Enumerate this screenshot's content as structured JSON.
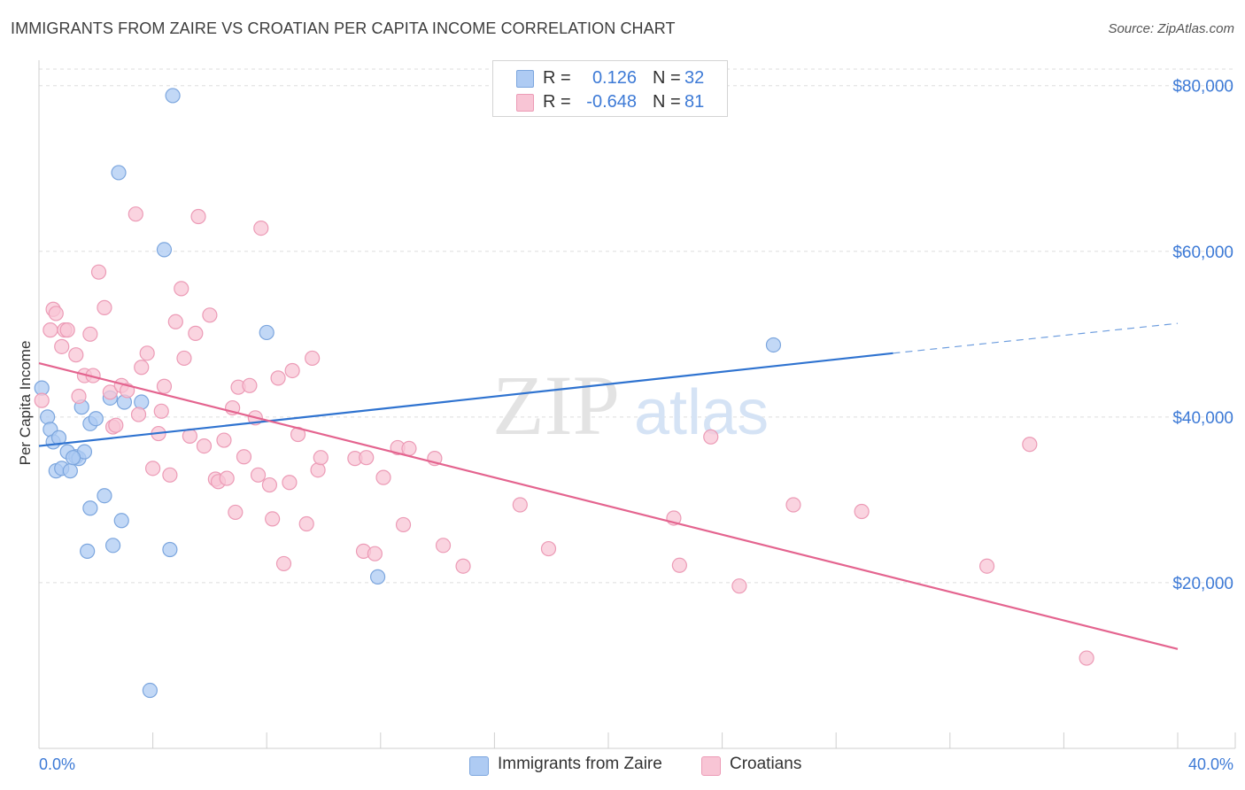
{
  "title": "IMMIGRANTS FROM ZAIRE VS CROATIAN PER CAPITA INCOME CORRELATION CHART",
  "source": "Source: ZipAtlas.com",
  "watermark": {
    "zip": "ZIP",
    "atlas": "atlas"
  },
  "legend_top": {
    "rows": [
      {
        "r_label": "R =",
        "r_value": "0.126",
        "n_label": "N =",
        "n_value": "32"
      },
      {
        "r_label": "R =",
        "r_value": "-0.648",
        "n_label": "N =",
        "n_value": "81"
      }
    ]
  },
  "legend_bottom": {
    "items": [
      {
        "label": "Immigrants from Zaire"
      },
      {
        "label": "Croatians"
      }
    ]
  },
  "colors": {
    "blue_fill": "#aecbf3",
    "blue_stroke": "#7ca6de",
    "blue_line": "#2f73d0",
    "pink_fill": "#f8c5d5",
    "pink_stroke": "#ec9bb6",
    "pink_line": "#e4648f",
    "axis_text": "#3d7ad6",
    "grid": "#dddddd"
  },
  "chart_data": {
    "type": "scatter",
    "title": "IMMIGRANTS FROM ZAIRE VS CROATIAN PER CAPITA INCOME CORRELATION CHART",
    "xlabel": "",
    "ylabel": "Per Capita Income",
    "xlim": [
      0,
      40
    ],
    "ylim": [
      0,
      82000
    ],
    "x_tick_labels": [
      "0.0%",
      "40.0%"
    ],
    "y_ticks": [
      20000,
      40000,
      60000,
      80000
    ],
    "y_tick_labels": [
      "$20,000",
      "$40,000",
      "$60,000",
      "$80,000"
    ],
    "grid": true,
    "legend_position": "top-center",
    "series": [
      {
        "name": "Immigrants from Zaire",
        "r": 0.126,
        "n": 32,
        "points": [
          [
            0.1,
            43500
          ],
          [
            0.3,
            40000
          ],
          [
            0.4,
            38500
          ],
          [
            0.5,
            37000
          ],
          [
            0.7,
            37500
          ],
          [
            0.6,
            33500
          ],
          [
            0.8,
            33800
          ],
          [
            1.0,
            35800
          ],
          [
            1.1,
            33500
          ],
          [
            1.3,
            35200
          ],
          [
            1.4,
            35000
          ],
          [
            1.5,
            41200
          ],
          [
            1.6,
            35800
          ],
          [
            1.8,
            39200
          ],
          [
            2.0,
            39800
          ],
          [
            1.8,
            29000
          ],
          [
            2.3,
            30500
          ],
          [
            1.7,
            23800
          ],
          [
            2.6,
            24500
          ],
          [
            2.9,
            27500
          ],
          [
            2.5,
            42300
          ],
          [
            3.0,
            41800
          ],
          [
            3.6,
            41800
          ],
          [
            2.8,
            69500
          ],
          [
            4.4,
            60200
          ],
          [
            4.7,
            78800
          ],
          [
            4.6,
            24000
          ],
          [
            3.9,
            7000
          ],
          [
            8.0,
            50200
          ],
          [
            11.9,
            20700
          ],
          [
            25.8,
            48700
          ],
          [
            1.2,
            35100
          ]
        ],
        "trend": {
          "x": [
            0,
            30
          ],
          "y": [
            36500,
            47700
          ]
        },
        "trend_extension": {
          "x": [
            30,
            40
          ],
          "y": [
            47700,
            51300
          ]
        }
      },
      {
        "name": "Croatians",
        "r": -0.648,
        "n": 81,
        "points": [
          [
            0.1,
            42000
          ],
          [
            0.4,
            50500
          ],
          [
            0.5,
            53000
          ],
          [
            0.6,
            52500
          ],
          [
            0.8,
            48500
          ],
          [
            0.9,
            50500
          ],
          [
            1.0,
            50500
          ],
          [
            1.3,
            47500
          ],
          [
            1.4,
            42500
          ],
          [
            1.6,
            45000
          ],
          [
            1.8,
            50000
          ],
          [
            1.9,
            45000
          ],
          [
            2.1,
            57500
          ],
          [
            2.3,
            53200
          ],
          [
            2.5,
            43000
          ],
          [
            2.6,
            38800
          ],
          [
            2.7,
            39000
          ],
          [
            2.9,
            43800
          ],
          [
            3.1,
            43200
          ],
          [
            3.4,
            64500
          ],
          [
            3.5,
            40300
          ],
          [
            3.6,
            46000
          ],
          [
            3.8,
            47700
          ],
          [
            4.0,
            33800
          ],
          [
            4.2,
            38000
          ],
          [
            4.3,
            40700
          ],
          [
            4.4,
            43700
          ],
          [
            4.6,
            33000
          ],
          [
            4.8,
            51500
          ],
          [
            5.0,
            55500
          ],
          [
            5.1,
            47100
          ],
          [
            5.3,
            37700
          ],
          [
            5.5,
            50100
          ],
          [
            5.6,
            64200
          ],
          [
            5.8,
            36500
          ],
          [
            6.0,
            52300
          ],
          [
            6.2,
            32500
          ],
          [
            6.3,
            32200
          ],
          [
            6.5,
            37200
          ],
          [
            6.6,
            32600
          ],
          [
            6.8,
            41100
          ],
          [
            6.9,
            28500
          ],
          [
            7.0,
            43600
          ],
          [
            7.2,
            35200
          ],
          [
            7.4,
            43800
          ],
          [
            7.6,
            39900
          ],
          [
            7.7,
            33000
          ],
          [
            7.8,
            62800
          ],
          [
            8.1,
            31800
          ],
          [
            8.2,
            27700
          ],
          [
            8.4,
            44700
          ],
          [
            8.6,
            22300
          ],
          [
            8.8,
            32100
          ],
          [
            8.9,
            45600
          ],
          [
            9.1,
            37900
          ],
          [
            9.4,
            27100
          ],
          [
            9.6,
            47100
          ],
          [
            9.8,
            33600
          ],
          [
            9.9,
            35100
          ],
          [
            11.1,
            35000
          ],
          [
            11.4,
            23800
          ],
          [
            11.5,
            35100
          ],
          [
            11.8,
            23500
          ],
          [
            12.1,
            32700
          ],
          [
            12.6,
            36300
          ],
          [
            12.8,
            27000
          ],
          [
            13.0,
            36200
          ],
          [
            13.9,
            35000
          ],
          [
            14.2,
            24500
          ],
          [
            14.9,
            22000
          ],
          [
            16.9,
            29400
          ],
          [
            17.9,
            24100
          ],
          [
            22.3,
            27800
          ],
          [
            22.5,
            22100
          ],
          [
            23.6,
            37600
          ],
          [
            24.6,
            19600
          ],
          [
            26.5,
            29400
          ],
          [
            28.9,
            28600
          ],
          [
            33.3,
            22000
          ],
          [
            34.8,
            36700
          ],
          [
            36.8,
            10900
          ]
        ],
        "trend": {
          "x": [
            0,
            40
          ],
          "y": [
            46500,
            12000
          ]
        }
      }
    ]
  }
}
